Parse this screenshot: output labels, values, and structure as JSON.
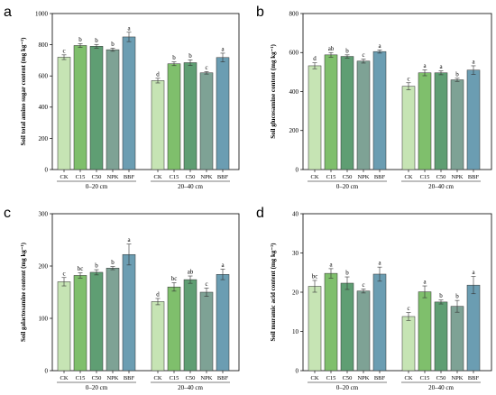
{
  "chart_data": [
    {
      "panel": "a",
      "type": "bar",
      "ylabel": "Soil total amino sugar content (mg kg⁻¹)",
      "ylim": [
        0,
        1000
      ],
      "yticks": [
        0,
        200,
        400,
        600,
        800,
        1000
      ],
      "treatments": [
        "CK",
        "C15",
        "C50",
        "NPK",
        "BBF"
      ],
      "colors": [
        "#c6e4b4",
        "#7fbf6c",
        "#5f9e73",
        "#7ea295",
        "#6b9db2"
      ],
      "groups": [
        {
          "label": "0–20 cm",
          "values": [
            720,
            795,
            790,
            768,
            850
          ],
          "errors": [
            15,
            12,
            12,
            10,
            30
          ],
          "letters": [
            "c",
            "b",
            "b",
            "b",
            "a"
          ]
        },
        {
          "label": "20–40 cm",
          "values": [
            570,
            678,
            685,
            620,
            718
          ],
          "errors": [
            15,
            12,
            18,
            8,
            28
          ],
          "letters": [
            "d",
            "b",
            "b",
            "c",
            "a"
          ]
        }
      ]
    },
    {
      "panel": "b",
      "type": "bar",
      "ylabel": "Soil glucosamine content (mg kg⁻¹)",
      "ylim": [
        0,
        800
      ],
      "yticks": [
        0,
        200,
        400,
        600,
        800
      ],
      "treatments": [
        "CK",
        "C15",
        "C50",
        "NPK",
        "BBF"
      ],
      "colors": [
        "#c6e4b4",
        "#7fbf6c",
        "#5f9e73",
        "#7ea295",
        "#6b9db2"
      ],
      "groups": [
        {
          "label": "0–20 cm",
          "values": [
            532,
            588,
            580,
            556,
            605
          ],
          "errors": [
            15,
            12,
            8,
            10,
            8
          ],
          "letters": [
            "d",
            "ab",
            "b",
            "c",
            "a"
          ]
        },
        {
          "label": "20–40 cm",
          "values": [
            427,
            496,
            496,
            460,
            510
          ],
          "errors": [
            18,
            15,
            10,
            8,
            22
          ],
          "letters": [
            "c",
            "a",
            "a",
            "b",
            "a"
          ]
        }
      ]
    },
    {
      "panel": "c",
      "type": "bar",
      "ylabel": "Soil galactosamine content (mg kg⁻¹)",
      "ylim": [
        0,
        300
      ],
      "yticks": [
        0,
        100,
        200,
        300
      ],
      "treatments": [
        "CK",
        "C15",
        "C50",
        "NPK",
        "BBF"
      ],
      "colors": [
        "#c6e4b4",
        "#7fbf6c",
        "#5f9e73",
        "#7ea295",
        "#6b9db2"
      ],
      "groups": [
        {
          "label": "0–20 cm",
          "values": [
            170,
            182,
            188,
            196,
            222
          ],
          "errors": [
            8,
            5,
            5,
            3,
            20
          ],
          "letters": [
            "c",
            "bc",
            "b",
            "b",
            "a"
          ]
        },
        {
          "label": "20–40 cm",
          "values": [
            132,
            160,
            174,
            150,
            184
          ],
          "errors": [
            6,
            8,
            7,
            8,
            10
          ],
          "letters": [
            "d",
            "bc",
            "ab",
            "c",
            "a"
          ]
        }
      ]
    },
    {
      "panel": "d",
      "type": "bar",
      "ylabel": "Soil muramic acid content (mg kg⁻¹)",
      "ylim": [
        0,
        40
      ],
      "yticks": [
        0,
        10,
        20,
        30,
        40
      ],
      "treatments": [
        "CK",
        "C15",
        "C50",
        "NPK",
        "BBF"
      ],
      "colors": [
        "#c6e4b4",
        "#7fbf6c",
        "#5f9e73",
        "#7ea295",
        "#6b9db2"
      ],
      "groups": [
        {
          "label": "0–20 cm",
          "values": [
            21.5,
            24.8,
            22.3,
            20.3,
            24.6
          ],
          "errors": [
            1.5,
            1.2,
            1.6,
            0.5,
            1.8
          ],
          "letters": [
            "bc",
            "a",
            "b",
            "c",
            "a"
          ]
        },
        {
          "label": "20–40 cm",
          "values": [
            13.8,
            20.1,
            17.5,
            16.4,
            21.8
          ],
          "errors": [
            1.0,
            1.5,
            0.5,
            1.5,
            2.2
          ],
          "letters": [
            "c",
            "a",
            "b",
            "b",
            "a"
          ]
        }
      ]
    }
  ]
}
